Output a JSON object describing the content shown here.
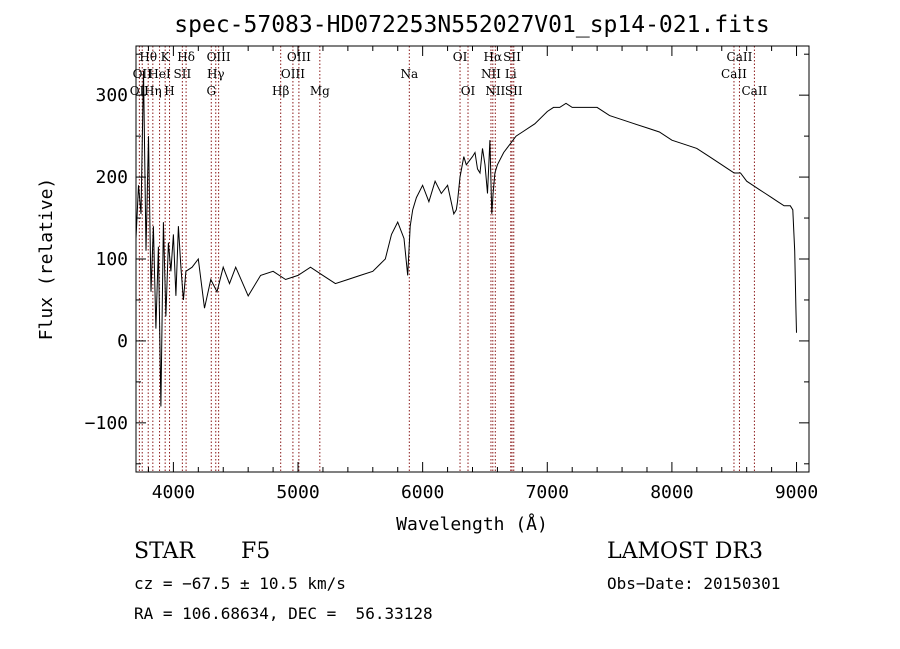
{
  "chart_data": {
    "type": "line",
    "title": "spec-57083-HD072253N552027V01_sp14-021.fits",
    "xlabel": "Wavelength (Å)",
    "ylabel": "Flux (relative)",
    "xlim": [
      3700,
      9100
    ],
    "ylim": [
      -160,
      360
    ],
    "x_ticks": [
      4000,
      5000,
      6000,
      7000,
      8000,
      9000
    ],
    "x_tick_labels": [
      "4000",
      "5000",
      "6000",
      "7000",
      "8000",
      "9000"
    ],
    "y_ticks": [
      -100,
      0,
      100,
      200,
      300
    ],
    "y_tick_labels": [
      "−100",
      "0",
      "100",
      "200",
      "300"
    ],
    "grid": false,
    "series": [
      {
        "name": "Flux",
        "x": [
          3700,
          3720,
          3740,
          3760,
          3780,
          3800,
          3820,
          3840,
          3860,
          3880,
          3900,
          3920,
          3940,
          3960,
          3980,
          4000,
          4020,
          4040,
          4060,
          4080,
          4100,
          4150,
          4200,
          4250,
          4300,
          4350,
          4400,
          4450,
          4500,
          4600,
          4700,
          4800,
          4900,
          5000,
          5100,
          5200,
          5300,
          5400,
          5500,
          5600,
          5700,
          5750,
          5800,
          5850,
          5880,
          5900,
          5920,
          5950,
          6000,
          6050,
          6100,
          6150,
          6200,
          6250,
          6270,
          6280,
          6300,
          6330,
          6350,
          6400,
          6420,
          6440,
          6460,
          6480,
          6500,
          6520,
          6540,
          6555,
          6565,
          6580,
          6600,
          6650,
          6700,
          6750,
          6800,
          6900,
          7000,
          7050,
          7100,
          7150,
          7200,
          7300,
          7400,
          7500,
          7600,
          7700,
          7800,
          7900,
          8000,
          8100,
          8200,
          8300,
          8400,
          8450,
          8500,
          8550,
          8600,
          8650,
          8700,
          8750,
          8800,
          8850,
          8900,
          8950,
          8970,
          8985,
          8995,
          9000
        ],
        "values": [
          125,
          190,
          155,
          330,
          110,
          250,
          60,
          140,
          15,
          115,
          -80,
          145,
          30,
          120,
          85,
          130,
          55,
          140,
          90,
          50,
          85,
          90,
          100,
          40,
          75,
          60,
          90,
          70,
          90,
          55,
          80,
          85,
          75,
          80,
          90,
          80,
          70,
          75,
          80,
          85,
          100,
          130,
          145,
          125,
          80,
          140,
          160,
          175,
          190,
          170,
          195,
          180,
          190,
          155,
          160,
          170,
          200,
          225,
          215,
          225,
          230,
          210,
          205,
          235,
          215,
          180,
          245,
          155,
          180,
          205,
          215,
          230,
          240,
          250,
          255,
          265,
          280,
          285,
          285,
          290,
          285,
          285,
          285,
          275,
          270,
          265,
          260,
          255,
          245,
          240,
          235,
          225,
          215,
          210,
          205,
          205,
          195,
          190,
          185,
          180,
          175,
          170,
          165,
          165,
          160,
          110,
          40,
          10
        ]
      }
    ],
    "lines": [
      {
        "x": 3727,
        "label": "OII",
        "row": 3
      },
      {
        "x": 3750,
        "label": "OII",
        "row": 2
      },
      {
        "x": 3798,
        "label": "Hθ",
        "row": 1
      },
      {
        "x": 3835,
        "label": "Hη",
        "row": 3
      },
      {
        "x": 3889,
        "label": "HeI",
        "row": 2
      },
      {
        "x": 3934,
        "label": "K",
        "row": 1
      },
      {
        "x": 3969,
        "label": "H",
        "row": 3
      },
      {
        "x": 4072,
        "label": "SII",
        "row": 2
      },
      {
        "x": 4102,
        "label": "Hδ",
        "row": 1
      },
      {
        "x": 4304,
        "label": "G",
        "row": 3
      },
      {
        "x": 4340,
        "label": "Hγ",
        "row": 2
      },
      {
        "x": 4363,
        "label": "OIII",
        "row": 1
      },
      {
        "x": 4861,
        "label": "Hβ",
        "row": 3
      },
      {
        "x": 4959,
        "label": "OIII",
        "row": 2
      },
      {
        "x": 5007,
        "label": "OIII",
        "row": 1
      },
      {
        "x": 5175,
        "label": "Mg",
        "row": 3
      },
      {
        "x": 5893,
        "label": "Na",
        "row": 2
      },
      {
        "x": 6300,
        "label": "OI",
        "row": 1
      },
      {
        "x": 6364,
        "label": "OI",
        "row": 3
      },
      {
        "x": 6548,
        "label": "NII",
        "row": 2
      },
      {
        "x": 6563,
        "label": "Hα",
        "row": 1
      },
      {
        "x": 6583,
        "label": "NII",
        "row": 3
      },
      {
        "x": 6707,
        "label": "Li",
        "row": 2
      },
      {
        "x": 6717,
        "label": "SII",
        "row": 1
      },
      {
        "x": 6731,
        "label": "SII",
        "row": 3
      },
      {
        "x": 8498,
        "label": "CaII",
        "row": 2
      },
      {
        "x": 8542,
        "label": "CaII",
        "row": 1
      },
      {
        "x": 8662,
        "label": "CaII",
        "row": 3
      }
    ]
  },
  "info": {
    "object_class": "STAR",
    "subclass": "F5",
    "survey": "LAMOST DR3",
    "redshift": "cz = −67.5 ± 10.5 km/s",
    "obs_date": "Obs−Date: 20150301",
    "coords": "RA = 106.68634, DEC =  56.33128"
  }
}
